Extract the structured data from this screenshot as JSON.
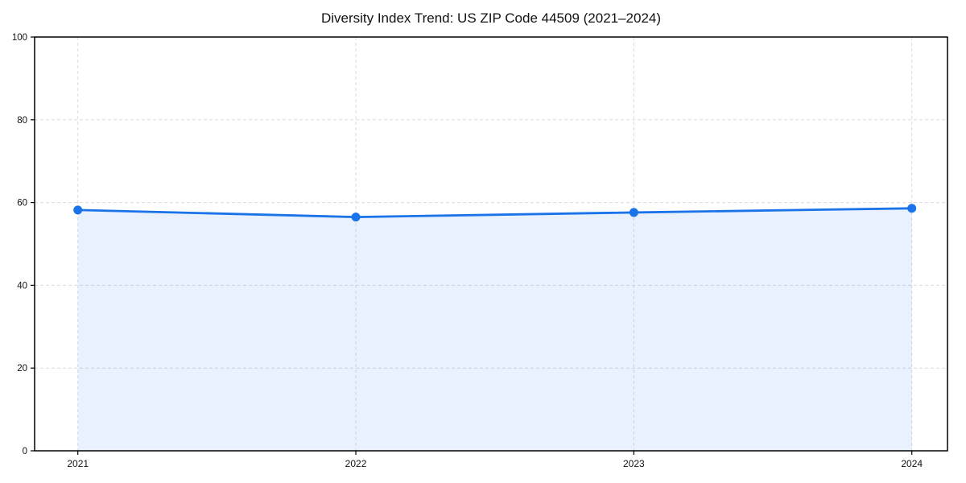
{
  "chart_data": {
    "type": "area",
    "title": "Diversity Index Trend: US ZIP Code 44509 (2021–2024)",
    "categories": [
      "2021",
      "2022",
      "2023",
      "2024"
    ],
    "series": [
      {
        "name": "Diversity Index",
        "values": [
          58.2,
          56.5,
          57.6,
          58.6
        ]
      }
    ],
    "xlabel": "",
    "ylabel": "",
    "ylim": [
      0,
      100
    ],
    "yticks": [
      0,
      20,
      40,
      60,
      80,
      100
    ],
    "grid": true,
    "grid_style": "dashed",
    "legend_position": "none",
    "line_color": "#1a73e8",
    "fill_color": "#1a73e8",
    "fill_opacity": 0.1,
    "grid_color": "#dcdcdc",
    "spine_color": "#000000",
    "marker": "circle"
  }
}
